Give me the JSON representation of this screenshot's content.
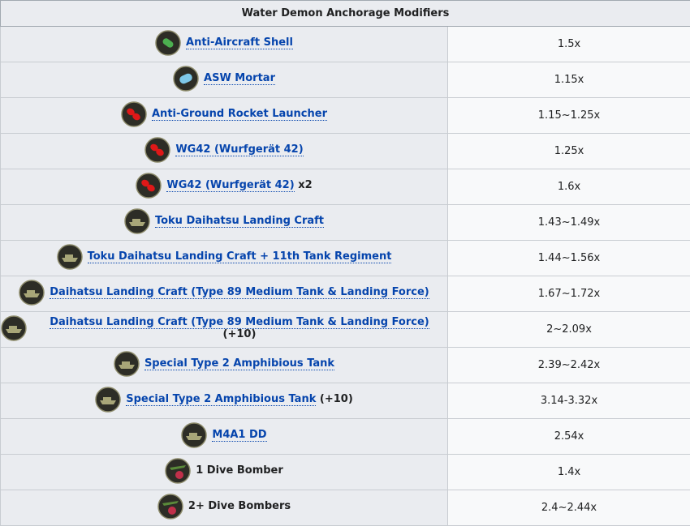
{
  "table": {
    "title": "Water Demon Anchorage Modifiers",
    "rows": [
      {
        "link": "Anti-Aircraft Shell",
        "value": "1.5x"
      },
      {
        "link": "ASW Mortar",
        "value": "1.15x"
      },
      {
        "link": "Anti-Ground Rocket Launcher",
        "value": "1.15~1.25x"
      },
      {
        "link": "WG42 (Wurfgerät 42)",
        "value": "1.25x"
      },
      {
        "link": "WG42 (Wurfgerät 42)",
        "suffix": "x2",
        "value": "1.6x"
      },
      {
        "link": "Toku Daihatsu Landing Craft",
        "value": "1.43~1.49x"
      },
      {
        "link": "Toku Daihatsu Landing Craft + 11th Tank Regiment",
        "value": "1.44~1.56x"
      },
      {
        "link": "Daihatsu Landing Craft (Type 89 Medium Tank & Landing Force)",
        "value": "1.67~1.72x"
      },
      {
        "link": "Daihatsu Landing Craft (Type 89 Medium Tank & Landing Force)",
        "suffix": "(+10)",
        "value": "2~2.09x"
      },
      {
        "link": "Special Type 2 Amphibious Tank",
        "value": "2.39~2.42x"
      },
      {
        "link": "Special Type 2 Amphibious Tank",
        "suffix": "(+10)",
        "value": "3.14-3.32x"
      },
      {
        "link": "M4A1 DD",
        "value": "2.54x"
      },
      {
        "text": "1 Dive Bomber",
        "value": "1.4x"
      },
      {
        "text": "2+ Dive Bombers",
        "value": "2.4~2.44x"
      }
    ]
  }
}
